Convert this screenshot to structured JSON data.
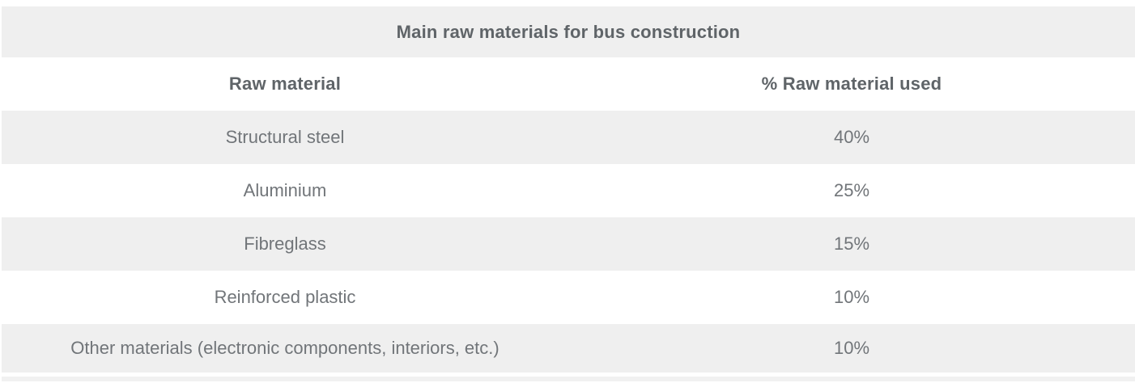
{
  "table": {
    "title": "Main raw materials for bus construction",
    "columns": {
      "material": "Raw material",
      "percent": "% Raw material used"
    },
    "rows": [
      {
        "material": "Structural steel",
        "percent": "40%"
      },
      {
        "material": "Aluminium",
        "percent": "25%"
      },
      {
        "material": "Fibreglass",
        "percent": "15%"
      },
      {
        "material": "Reinforced plastic",
        "percent": "10%"
      },
      {
        "material": "Other materials (electronic components, interiors, etc.)",
        "percent": "10%"
      }
    ],
    "colors": {
      "row_shade": "#efefef",
      "header_text": "#5f6468",
      "body_text": "#717579",
      "background": "#ffffff",
      "bottom_strip": "#f1f1f1"
    }
  },
  "chart_data": {
    "type": "table",
    "title": "Main raw materials for bus construction",
    "columns": [
      "Raw material",
      "% Raw material used"
    ],
    "categories": [
      "Structural steel",
      "Aluminium",
      "Fibreglass",
      "Reinforced plastic",
      "Other materials (electronic components, interiors, etc.)"
    ],
    "values": [
      40,
      25,
      15,
      10,
      10
    ],
    "value_format": "percent"
  }
}
